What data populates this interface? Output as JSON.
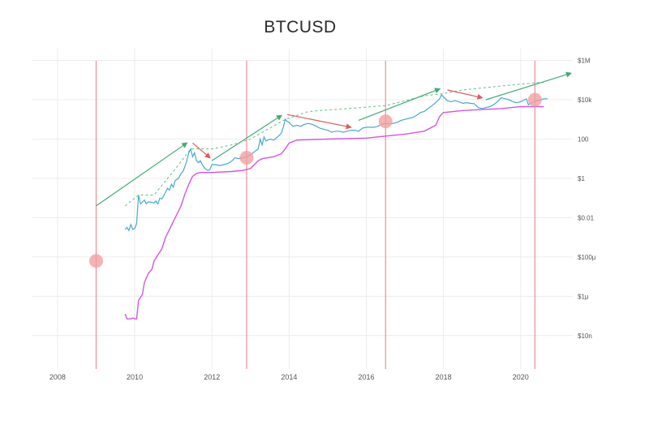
{
  "chart_data": {
    "type": "line",
    "title": "BTCUSD",
    "xlabel": "",
    "ylabel": "",
    "y_scale": "log",
    "xlim": [
      2007.35,
      2021.35
    ],
    "ylim_log10": [
      -9.7,
      6.6
    ],
    "x_ticks": [
      2008,
      2010,
      2012,
      2014,
      2016,
      2018,
      2020
    ],
    "x_tick_labels": [
      "2008",
      "2010",
      "2012",
      "2014",
      "2016",
      "2018",
      "2020"
    ],
    "y_ticks_log10": [
      6,
      4,
      2,
      0,
      -2,
      -4,
      -6,
      -8
    ],
    "y_tick_labels": [
      "$1M",
      "$10k",
      "100",
      "$1",
      "$0.01",
      "$100µ",
      "$1µ",
      "$10n"
    ],
    "grid": true,
    "colors": {
      "price": "#46aacd",
      "floor": "#d455e0",
      "halving_line": "#f08c96",
      "halving_marker": "#f2a0a0",
      "uptrend_arrow": "#44aa77",
      "downtrend_arrow": "#e05a5a",
      "peak_envelope": "#66bb88",
      "grid": "#ececec"
    },
    "series": [
      {
        "role": "price",
        "points": [
          [
            2009.75,
            -2.6
          ],
          [
            2009.8,
            -2.5
          ],
          [
            2009.85,
            -2.65
          ],
          [
            2009.9,
            -2.35
          ],
          [
            2009.95,
            -2.6
          ],
          [
            2010.0,
            -2.55
          ],
          [
            2010.05,
            -2.3
          ],
          [
            2010.1,
            -0.85
          ],
          [
            2010.15,
            -1.3
          ],
          [
            2010.25,
            -1.1
          ],
          [
            2010.3,
            -1.3
          ],
          [
            2010.35,
            -1.2
          ],
          [
            2010.4,
            -1.2
          ],
          [
            2010.5,
            -1.25
          ],
          [
            2010.55,
            -1.15
          ],
          [
            2010.6,
            -1.3
          ],
          [
            2010.65,
            -1.0
          ],
          [
            2010.7,
            -1.05
          ],
          [
            2010.75,
            -0.9
          ],
          [
            2010.8,
            -0.7
          ],
          [
            2010.85,
            -0.5
          ],
          [
            2010.9,
            -0.6
          ],
          [
            2010.95,
            -0.3
          ],
          [
            2011.0,
            -0.45
          ],
          [
            2011.05,
            -0.1
          ],
          [
            2011.1,
            -0.05
          ],
          [
            2011.15,
            0.05
          ],
          [
            2011.2,
            0.25
          ],
          [
            2011.25,
            0.35
          ],
          [
            2011.3,
            0.6
          ],
          [
            2011.35,
            0.9
          ],
          [
            2011.4,
            1.3
          ],
          [
            2011.45,
            1.5
          ],
          [
            2011.5,
            1.1
          ],
          [
            2011.55,
            1.3
          ],
          [
            2011.6,
            0.9
          ],
          [
            2011.65,
            0.8
          ],
          [
            2011.7,
            0.9
          ],
          [
            2011.75,
            0.7
          ],
          [
            2011.8,
            0.55
          ],
          [
            2011.85,
            0.45
          ],
          [
            2011.9,
            0.4
          ],
          [
            2011.95,
            0.45
          ],
          [
            2012.0,
            0.7
          ],
          [
            2012.1,
            0.7
          ],
          [
            2012.2,
            0.65
          ],
          [
            2012.3,
            0.7
          ],
          [
            2012.4,
            0.75
          ],
          [
            2012.5,
            0.85
          ],
          [
            2012.6,
            1.05
          ],
          [
            2012.7,
            1.0
          ],
          [
            2012.8,
            1.05
          ],
          [
            2012.9,
            1.1
          ],
          [
            2013.0,
            1.2
          ],
          [
            2013.1,
            1.35
          ],
          [
            2013.2,
            1.5
          ],
          [
            2013.25,
            2.0
          ],
          [
            2013.3,
            1.7
          ],
          [
            2013.35,
            2.1
          ],
          [
            2013.4,
            1.9
          ],
          [
            2013.5,
            2.0
          ],
          [
            2013.6,
            1.95
          ],
          [
            2013.7,
            2.1
          ],
          [
            2013.8,
            2.3
          ],
          [
            2013.85,
            2.6
          ],
          [
            2013.9,
            3.0
          ],
          [
            2013.95,
            2.9
          ],
          [
            2014.0,
            2.85
          ],
          [
            2014.05,
            2.75
          ],
          [
            2014.1,
            2.65
          ],
          [
            2014.2,
            2.7
          ],
          [
            2014.3,
            2.65
          ],
          [
            2014.4,
            2.75
          ],
          [
            2014.5,
            2.8
          ],
          [
            2014.6,
            2.75
          ],
          [
            2014.7,
            2.65
          ],
          [
            2014.8,
            2.55
          ],
          [
            2014.9,
            2.5
          ],
          [
            2015.0,
            2.45
          ],
          [
            2015.1,
            2.35
          ],
          [
            2015.2,
            2.4
          ],
          [
            2015.3,
            2.4
          ],
          [
            2015.4,
            2.35
          ],
          [
            2015.5,
            2.4
          ],
          [
            2015.6,
            2.45
          ],
          [
            2015.7,
            2.45
          ],
          [
            2015.8,
            2.4
          ],
          [
            2015.9,
            2.55
          ],
          [
            2016.0,
            2.6
          ],
          [
            2016.1,
            2.6
          ],
          [
            2016.2,
            2.6
          ],
          [
            2016.3,
            2.65
          ],
          [
            2016.4,
            2.75
          ],
          [
            2016.5,
            2.8
          ],
          [
            2016.6,
            2.78
          ],
          [
            2016.7,
            2.8
          ],
          [
            2016.8,
            2.85
          ],
          [
            2016.9,
            2.95
          ],
          [
            2017.0,
            3.0
          ],
          [
            2017.1,
            3.05
          ],
          [
            2017.2,
            3.1
          ],
          [
            2017.3,
            3.2
          ],
          [
            2017.4,
            3.35
          ],
          [
            2017.5,
            3.4
          ],
          [
            2017.6,
            3.55
          ],
          [
            2017.7,
            3.7
          ],
          [
            2017.8,
            3.85
          ],
          [
            2017.9,
            4.05
          ],
          [
            2017.95,
            4.25
          ],
          [
            2018.0,
            4.15
          ],
          [
            2018.05,
            4.05
          ],
          [
            2018.1,
            3.95
          ],
          [
            2018.2,
            3.9
          ],
          [
            2018.3,
            3.95
          ],
          [
            2018.4,
            3.9
          ],
          [
            2018.5,
            3.82
          ],
          [
            2018.6,
            3.85
          ],
          [
            2018.7,
            3.82
          ],
          [
            2018.8,
            3.8
          ],
          [
            2018.9,
            3.6
          ],
          [
            2019.0,
            3.55
          ],
          [
            2019.1,
            3.6
          ],
          [
            2019.2,
            3.65
          ],
          [
            2019.3,
            3.75
          ],
          [
            2019.4,
            3.9
          ],
          [
            2019.5,
            4.1
          ],
          [
            2019.6,
            4.05
          ],
          [
            2019.7,
            4.0
          ],
          [
            2019.8,
            3.9
          ],
          [
            2019.9,
            3.85
          ],
          [
            2020.0,
            3.9
          ],
          [
            2020.1,
            4.0
          ],
          [
            2020.15,
            4.05
          ],
          [
            2020.2,
            3.75
          ],
          [
            2020.3,
            3.85
          ],
          [
            2020.4,
            3.95
          ],
          [
            2020.5,
            3.98
          ],
          [
            2020.6,
            4.05
          ],
          [
            2020.7,
            4.05
          ]
        ]
      },
      {
        "role": "floor",
        "points": [
          [
            2009.75,
            -6.9
          ],
          [
            2009.8,
            -7.15
          ],
          [
            2009.9,
            -7.15
          ],
          [
            2009.95,
            -7.1
          ],
          [
            2010.0,
            -7.15
          ],
          [
            2010.05,
            -7.15
          ],
          [
            2010.1,
            -6.2
          ],
          [
            2010.2,
            -5.9
          ],
          [
            2010.25,
            -5.3
          ],
          [
            2010.35,
            -4.85
          ],
          [
            2010.45,
            -4.6
          ],
          [
            2010.5,
            -4.2
          ],
          [
            2010.6,
            -3.9
          ],
          [
            2010.7,
            -3.6
          ],
          [
            2010.8,
            -3.0
          ],
          [
            2010.9,
            -2.6
          ],
          [
            2011.0,
            -2.2
          ],
          [
            2011.1,
            -1.8
          ],
          [
            2011.2,
            -1.4
          ],
          [
            2011.3,
            -0.8
          ],
          [
            2011.4,
            -0.3
          ],
          [
            2011.5,
            0.1
          ],
          [
            2011.6,
            0.25
          ],
          [
            2011.7,
            0.3
          ],
          [
            2012.0,
            0.3
          ],
          [
            2012.5,
            0.35
          ],
          [
            2012.8,
            0.4
          ],
          [
            2013.0,
            0.5
          ],
          [
            2013.2,
            0.9
          ],
          [
            2013.3,
            1.0
          ],
          [
            2013.6,
            1.1
          ],
          [
            2013.8,
            1.25
          ],
          [
            2013.9,
            1.5
          ],
          [
            2014.0,
            1.8
          ],
          [
            2014.2,
            1.95
          ],
          [
            2015.0,
            2.0
          ],
          [
            2016.0,
            2.05
          ],
          [
            2016.5,
            2.15
          ],
          [
            2017.0,
            2.25
          ],
          [
            2017.5,
            2.4
          ],
          [
            2017.8,
            2.7
          ],
          [
            2017.9,
            3.15
          ],
          [
            2018.0,
            3.35
          ],
          [
            2018.5,
            3.45
          ],
          [
            2019.0,
            3.5
          ],
          [
            2019.5,
            3.55
          ],
          [
            2020.0,
            3.65
          ],
          [
            2020.5,
            3.65
          ],
          [
            2020.6,
            3.65
          ]
        ]
      },
      {
        "role": "peak-envelope",
        "points": [
          [
            2009.75,
            -1.4
          ],
          [
            2010.1,
            -0.85
          ],
          [
            2010.5,
            -0.85
          ],
          [
            2011.1,
            0.6
          ],
          [
            2011.45,
            1.5
          ],
          [
            2012.0,
            1.5
          ],
          [
            2012.5,
            1.7
          ],
          [
            2013.0,
            2.0
          ],
          [
            2013.9,
            3.0
          ],
          [
            2014.5,
            3.4
          ],
          [
            2015.5,
            3.55
          ],
          [
            2016.5,
            3.7
          ],
          [
            2017.5,
            4.2
          ],
          [
            2017.95,
            4.3
          ],
          [
            2018.5,
            4.5
          ],
          [
            2019.5,
            4.7
          ],
          [
            2020.6,
            4.9
          ]
        ]
      }
    ],
    "halvings": [
      2009.0,
      2012.9,
      2016.5,
      2020.37
    ],
    "halving_markers": [
      [
        2009.0,
        -4.2
      ],
      [
        2012.9,
        1.05
      ],
      [
        2016.5,
        2.9
      ],
      [
        2020.37,
        4.0
      ]
    ],
    "up_arrows": [
      [
        [
          2009.0,
          -1.4
        ],
        [
          2011.35,
          1.8
        ]
      ],
      [
        [
          2012.0,
          0.9
        ],
        [
          2013.8,
          3.2
        ]
      ],
      [
        [
          2015.8,
          2.95
        ],
        [
          2017.9,
          4.55
        ]
      ],
      [
        [
          2019.1,
          4.0
        ],
        [
          2021.3,
          5.35
        ]
      ]
    ],
    "down_arrows": [
      [
        [
          2011.5,
          1.8
        ],
        [
          2011.95,
          1.05
        ]
      ],
      [
        [
          2013.95,
          3.25
        ],
        [
          2015.6,
          2.6
        ]
      ],
      [
        [
          2018.1,
          4.5
        ],
        [
          2019.0,
          4.1
        ]
      ]
    ]
  }
}
